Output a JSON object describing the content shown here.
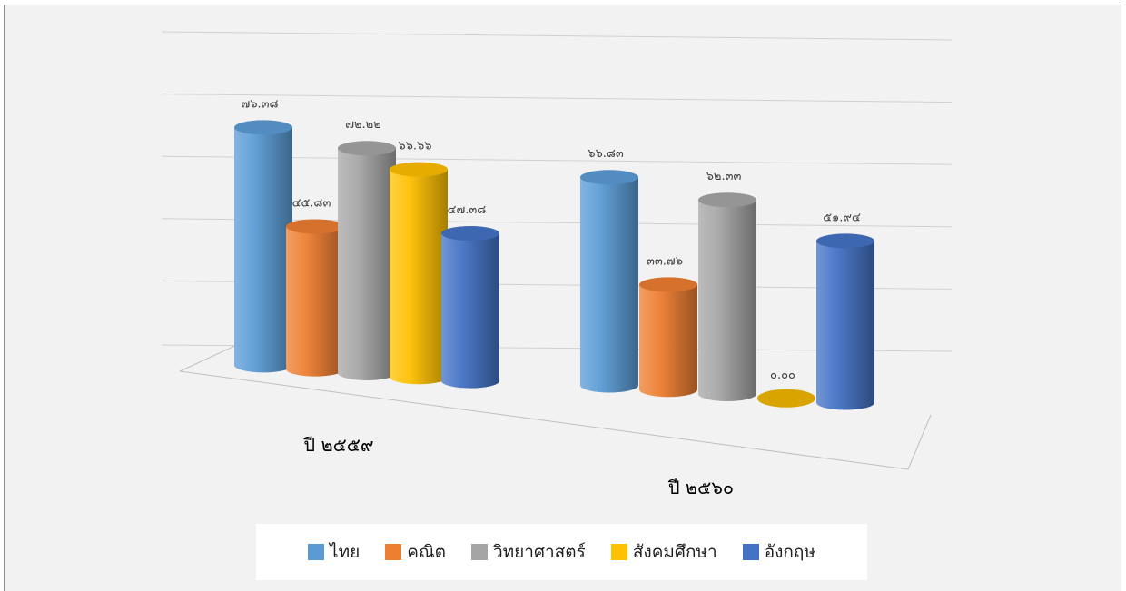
{
  "chart_data": {
    "type": "bar",
    "style": "3d-cylinder",
    "categories": [
      "ปี ๒๕๕๙",
      "ปี ๒๕๖๐"
    ],
    "series": [
      {
        "name": "ไทย",
        "color": "#5b9bd5",
        "values": [
          76.38,
          66.83
        ],
        "labels": [
          "๗๖.๓๘",
          "๖๖.๘๓"
        ]
      },
      {
        "name": "คณิต",
        "color": "#ed7d31",
        "values": [
          45.83,
          33.76
        ],
        "labels": [
          "๔๕.๘๓",
          "๓๓.๗๖"
        ]
      },
      {
        "name": "วิทยาศาสตร์",
        "color": "#a5a5a5",
        "values": [
          72.22,
          62.33
        ],
        "labels": [
          "๗๒.๒๒",
          "๖๒.๓๓"
        ]
      },
      {
        "name": "สังคมศึกษา",
        "color": "#ffc000",
        "values": [
          66.66,
          0.0
        ],
        "labels": [
          "๖๖.๖๖",
          "๐.๐๐"
        ]
      },
      {
        "name": "อังกฤษ",
        "color": "#4472c4",
        "values": [
          47.38,
          51.94
        ],
        "labels": [
          "๔๗.๓๘",
          "๕๑.๙๔"
        ]
      }
    ],
    "ylim": [
      0,
      100
    ],
    "grid": true,
    "legend_position": "bottom"
  }
}
